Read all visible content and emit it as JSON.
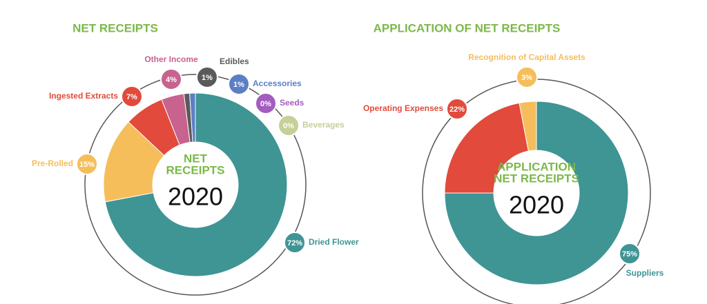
{
  "chart_data": [
    {
      "type": "donut",
      "title": "NET RECEIPTS",
      "center_title": [
        "NET",
        "RECEIPTS"
      ],
      "center_year": "2020",
      "categories": [
        "Dried Flower",
        "Pre-Rolled",
        "Ingested Extracts",
        "Other Income",
        "Edibles",
        "Accessories",
        "Seeds",
        "Beverages"
      ],
      "values": [
        72,
        15,
        7,
        4,
        1,
        1,
        0,
        0
      ],
      "value_labels": [
        "72%",
        "15%",
        "7%",
        "4%",
        "1%",
        "1%",
        "0%",
        "0%"
      ],
      "colors": [
        "#3f9494",
        "#f5be5a",
        "#e24a3b",
        "#c8628f",
        "#5a5a5a",
        "#5b7fc4",
        "#a35dbf",
        "#c5cf98"
      ]
    },
    {
      "type": "donut",
      "title": "APPLICATION OF NET RECEIPTS",
      "center_title": [
        "APPLICATION",
        "NET RECEIPTS"
      ],
      "center_year": "2020",
      "categories": [
        "Suppliers",
        "Operating Expenses",
        "Recognition of Capital Assets"
      ],
      "values": [
        75,
        22,
        3
      ],
      "value_labels": [
        "75%",
        "22%",
        "3%"
      ],
      "colors": [
        "#3f9494",
        "#e24a3b",
        "#f5be5a"
      ]
    }
  ]
}
